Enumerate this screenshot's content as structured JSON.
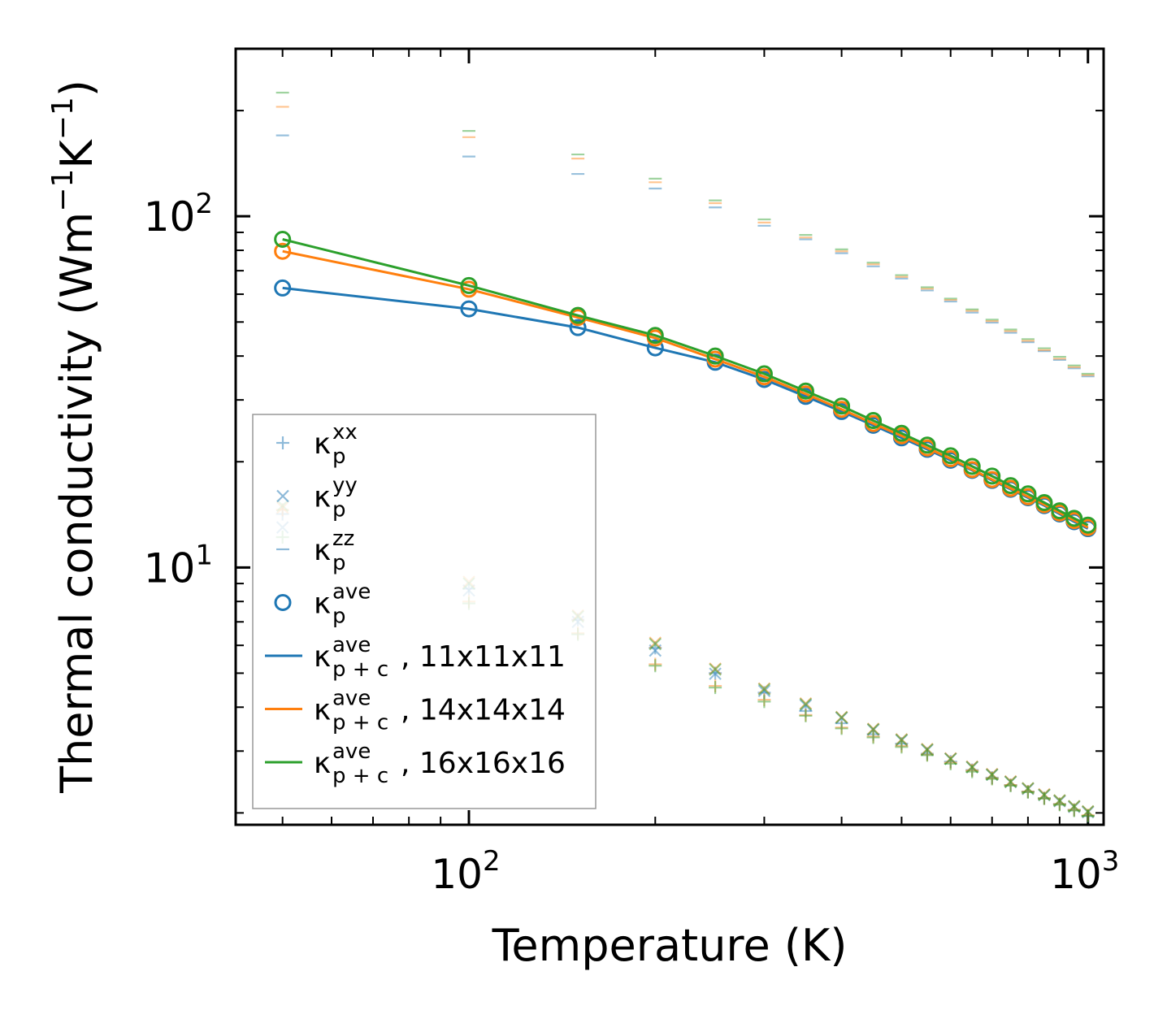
{
  "chart_data": {
    "type": "scatter",
    "xscale": "log",
    "yscale": "log",
    "xlim": [
      42,
      1060
    ],
    "ylim": [
      1.85,
      300
    ],
    "xlabel": "Temperature (K)",
    "ylabel": {
      "main": "Thermal conductivity (Wm",
      "sup1": "−1",
      "mid": "K",
      "sup2": "−1",
      "end": ")"
    },
    "xticks": [
      {
        "base": "10",
        "exp": "2",
        "value": 100
      },
      {
        "base": "10",
        "exp": "3",
        "value": 1000
      }
    ],
    "yticks": [
      {
        "base": "10",
        "exp": "1",
        "value": 10
      },
      {
        "base": "10",
        "exp": "2",
        "value": 100
      }
    ],
    "x": [
      50,
      100,
      150,
      200,
      250,
      300,
      350,
      400,
      450,
      500,
      550,
      600,
      650,
      700,
      750,
      800,
      850,
      900,
      950,
      1000
    ],
    "colors": {
      "c11": "#1f77b4",
      "c14": "#ff7f0e",
      "c16": "#2ca02c"
    },
    "series": [
      {
        "name": "kappa_p_ave_c 11x11x11",
        "mesh": "11x11x11",
        "colorKey": "c11",
        "ave_pc": [
          62.5,
          54.5,
          48.2,
          42.2,
          38.4,
          34.3,
          30.7,
          27.8,
          25.4,
          23.4,
          21.7,
          20.2,
          18.9,
          17.7,
          16.7,
          15.8,
          15.0,
          14.2,
          13.5,
          12.9
        ],
        "xx": [
          14.2,
          8.7,
          7.1,
          5.9,
          5.0,
          4.4,
          3.9,
          3.6,
          3.35,
          3.15,
          2.95,
          2.8,
          2.65,
          2.52,
          2.4,
          2.3,
          2.2,
          2.12,
          2.04,
          1.96
        ],
        "yy": [
          13.0,
          8.6,
          7.0,
          5.8,
          4.98,
          4.45,
          4.05,
          3.73,
          3.45,
          3.22,
          3.02,
          2.85,
          2.7,
          2.57,
          2.45,
          2.34,
          2.25,
          2.16,
          2.08,
          2.01
        ],
        "zz": [
          170,
          148,
          132,
          120,
          106,
          94,
          86,
          78.5,
          72,
          66.5,
          61.5,
          57.2,
          53.2,
          49.8,
          46.6,
          43.8,
          41.3,
          39.0,
          36.9,
          35.0
        ]
      },
      {
        "name": "kappa_p_ave_c 14x14x14",
        "mesh": "14x14x14",
        "colorKey": "c14",
        "ave_pc": [
          79.5,
          62.0,
          51.5,
          45.0,
          39.2,
          34.9,
          31.2,
          28.2,
          25.7,
          23.7,
          21.9,
          20.4,
          19.0,
          17.8,
          16.8,
          15.9,
          15.1,
          14.3,
          13.6,
          13.0
        ],
        "xx": [
          14.6,
          8.0,
          6.5,
          5.3,
          4.6,
          4.2,
          3.8,
          3.5,
          3.3,
          3.1,
          2.93,
          2.78,
          2.64,
          2.51,
          2.4,
          2.3,
          2.2,
          2.12,
          2.04,
          1.97
        ],
        "yy": [
          14.8,
          9.1,
          7.3,
          6.1,
          5.15,
          4.52,
          4.1,
          3.75,
          3.47,
          3.24,
          3.04,
          2.86,
          2.71,
          2.58,
          2.46,
          2.35,
          2.26,
          2.17,
          2.09,
          2.02
        ],
        "zz": [
          205,
          168,
          146,
          125,
          109,
          96,
          87,
          79.5,
          73,
          67.2,
          62.2,
          57.8,
          53.8,
          50.3,
          47.1,
          44.2,
          41.6,
          39.3,
          37.2,
          35.3
        ]
      },
      {
        "name": "kappa_p_ave_c 16x16x16",
        "mesh": "16x16x16",
        "colorKey": "c16",
        "ave_pc": [
          86.0,
          63.5,
          52.2,
          45.8,
          40.0,
          35.6,
          31.8,
          28.8,
          26.2,
          24.1,
          22.3,
          20.8,
          19.4,
          18.2,
          17.1,
          16.2,
          15.3,
          14.5,
          13.8,
          13.2
        ],
        "xx": [
          12.2,
          7.9,
          6.45,
          5.25,
          4.55,
          4.15,
          3.78,
          3.48,
          3.28,
          3.08,
          2.92,
          2.76,
          2.62,
          2.5,
          2.39,
          2.29,
          2.2,
          2.11,
          2.03,
          1.96
        ],
        "yy": [
          15.0,
          9.0,
          7.25,
          6.05,
          5.12,
          4.5,
          4.08,
          3.74,
          3.46,
          3.23,
          3.03,
          2.85,
          2.7,
          2.57,
          2.45,
          2.35,
          2.25,
          2.17,
          2.09,
          2.02
        ],
        "zz": [
          225,
          175,
          150,
          128,
          111,
          98,
          88.5,
          80.5,
          73.8,
          68.0,
          62.8,
          58.3,
          54.3,
          50.8,
          47.6,
          44.7,
          42.1,
          39.8,
          37.6,
          35.6
        ]
      }
    ],
    "legend": {
      "placement": "lower-left",
      "entries": [
        {
          "marker": "plus",
          "sym": "κ",
          "sub": "p",
          "sup": "xx",
          "tail": ""
        },
        {
          "marker": "cross",
          "sym": "κ",
          "sub": "p",
          "sup": "yy",
          "tail": ""
        },
        {
          "marker": "dash",
          "sym": "κ",
          "sub": "p",
          "sup": "zz",
          "tail": ""
        },
        {
          "marker": "circle",
          "sym": "κ",
          "sub": "p",
          "sup": "ave",
          "tail": ""
        },
        {
          "marker": "line",
          "colorKey": "c11",
          "sym": "κ",
          "sub": "p + c",
          "sup": "ave",
          "tail": ", 11x11x11"
        },
        {
          "marker": "line",
          "colorKey": "c14",
          "sym": "κ",
          "sub": "p + c",
          "sup": "ave",
          "tail": ", 14x14x14"
        },
        {
          "marker": "line",
          "colorKey": "c16",
          "sym": "κ",
          "sub": "p + c",
          "sup": "ave",
          "tail": ", 16x16x16"
        }
      ]
    }
  }
}
